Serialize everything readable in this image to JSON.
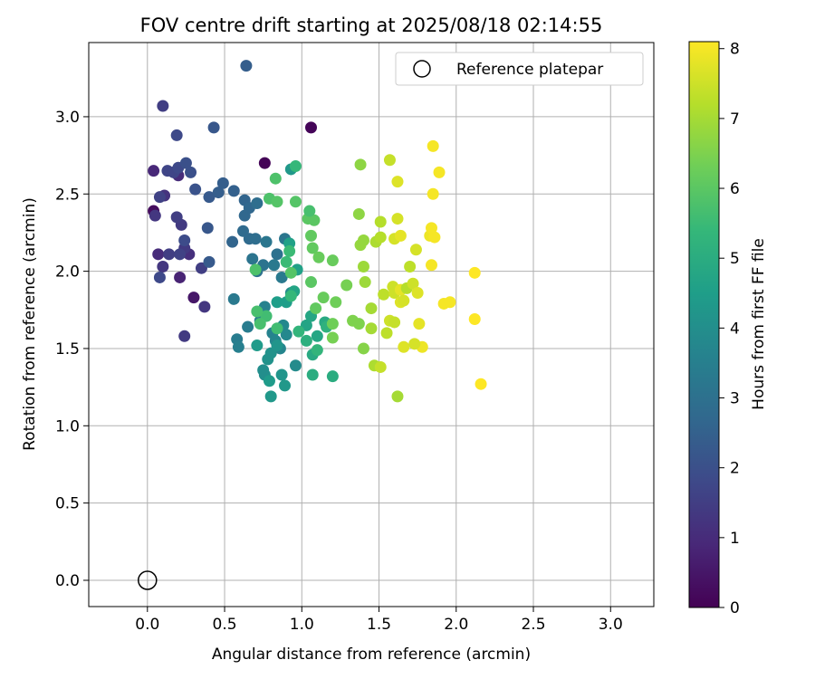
{
  "chart_data": {
    "type": "scatter",
    "title": "FOV centre drift starting at 2025/08/18 02:14:55",
    "xlabel": "Angular distance from reference (arcmin)",
    "ylabel": "Rotation from reference (arcmin)",
    "xlim": [
      -0.38,
      3.28
    ],
    "ylim": [
      -0.17,
      3.48
    ],
    "xticks": [
      0.0,
      0.5,
      1.0,
      1.5,
      2.0,
      2.5,
      3.0
    ],
    "yticks": [
      0.0,
      0.5,
      1.0,
      1.5,
      2.0,
      2.5,
      3.0
    ],
    "tick_format": "0.0",
    "grid": true,
    "legend": {
      "position": "top-right",
      "entries": [
        "Reference platepar"
      ]
    },
    "reference_point": {
      "x": 0.0,
      "y": 0.0,
      "label": "Reference platepar"
    },
    "colorbar": {
      "label": "Hours from first FF file",
      "range": [
        0,
        8.1
      ],
      "ticks": [
        0,
        1,
        2,
        3,
        4,
        5,
        6,
        7,
        8
      ],
      "colormap": "viridis"
    },
    "colormap_stops": [
      "#440154",
      "#482878",
      "#3e4989",
      "#31688e",
      "#26828e",
      "#1f9e89",
      "#35b779",
      "#6ece58",
      "#b5de2b",
      "#fde725"
    ],
    "series": [
      {
        "color_by": "hours",
        "points": [
          [
            0.76,
            2.7,
            0.05
          ],
          [
            1.06,
            2.93,
            0.1
          ],
          [
            0.04,
            2.39,
            0.25
          ],
          [
            0.3,
            1.83,
            0.5
          ],
          [
            0.21,
            1.96,
            0.8
          ],
          [
            0.04,
            2.65,
            0.9
          ],
          [
            0.07,
            2.11,
            1.0
          ],
          [
            0.2,
            2.62,
            1.0
          ],
          [
            0.27,
            2.11,
            1.1
          ],
          [
            0.11,
            2.49,
            1.2
          ],
          [
            0.05,
            2.36,
            1.3
          ],
          [
            0.1,
            2.03,
            1.3
          ],
          [
            0.24,
            2.15,
            1.4
          ],
          [
            0.22,
            2.3,
            1.4
          ],
          [
            0.35,
            2.02,
            1.5
          ],
          [
            0.37,
            1.77,
            1.3
          ],
          [
            0.24,
            1.58,
            1.4
          ],
          [
            0.1,
            3.07,
            1.5
          ],
          [
            0.19,
            2.35,
            1.5
          ],
          [
            0.14,
            2.11,
            1.5
          ],
          [
            0.21,
            2.11,
            1.6
          ],
          [
            0.08,
            2.48,
            1.6
          ],
          [
            0.13,
            2.65,
            1.7
          ],
          [
            0.17,
            2.64,
            1.7
          ],
          [
            0.2,
            2.67,
            1.8
          ],
          [
            0.08,
            1.96,
            1.8
          ],
          [
            0.19,
            2.88,
            1.8
          ],
          [
            0.24,
            2.2,
            1.9
          ],
          [
            0.25,
            2.7,
            2.0
          ],
          [
            0.31,
            2.53,
            2.1
          ],
          [
            0.28,
            2.64,
            2.0
          ],
          [
            0.43,
            2.93,
            2.2
          ],
          [
            0.39,
            2.28,
            2.2
          ],
          [
            0.4,
            2.48,
            2.3
          ],
          [
            0.4,
            2.06,
            2.3
          ],
          [
            0.46,
            2.51,
            2.4
          ],
          [
            0.49,
            2.57,
            2.4
          ],
          [
            0.56,
            2.52,
            2.5
          ],
          [
            0.64,
            3.33,
            2.4
          ],
          [
            0.55,
            2.19,
            2.6
          ],
          [
            0.63,
            2.46,
            2.6
          ],
          [
            0.63,
            2.36,
            2.7
          ],
          [
            0.66,
            2.41,
            2.7
          ],
          [
            0.62,
            2.26,
            2.8
          ],
          [
            0.66,
            2.21,
            2.8
          ],
          [
            0.7,
            2.21,
            2.9
          ],
          [
            0.71,
            2.44,
            2.9
          ],
          [
            0.71,
            2.0,
            3.0
          ],
          [
            0.68,
            2.08,
            3.1
          ],
          [
            0.75,
            2.04,
            3.1
          ],
          [
            0.84,
            2.11,
            3.0
          ],
          [
            0.77,
            2.19,
            3.2
          ],
          [
            0.89,
            2.21,
            3.2
          ],
          [
            0.82,
            2.04,
            3.3
          ],
          [
            0.87,
            1.96,
            3.3
          ],
          [
            0.56,
            1.82,
            3.3
          ],
          [
            0.65,
            1.64,
            3.4
          ],
          [
            0.58,
            1.56,
            3.4
          ],
          [
            0.59,
            1.51,
            3.5
          ],
          [
            0.73,
            1.68,
            3.5
          ],
          [
            0.76,
            1.77,
            3.6
          ],
          [
            0.81,
            1.6,
            3.6
          ],
          [
            0.83,
            1.55,
            3.7
          ],
          [
            0.86,
            1.5,
            3.7
          ],
          [
            0.88,
            1.65,
            3.8
          ],
          [
            0.9,
            1.59,
            3.8
          ],
          [
            0.93,
            1.86,
            3.9
          ],
          [
            0.96,
            1.39,
            3.9
          ],
          [
            0.75,
            1.36,
            4.0
          ],
          [
            0.76,
            1.33,
            4.0
          ],
          [
            0.78,
            1.43,
            4.1
          ],
          [
            0.8,
            1.47,
            4.1
          ],
          [
            0.84,
            1.52,
            4.2
          ],
          [
            0.87,
            1.33,
            4.2
          ],
          [
            0.89,
            1.26,
            4.3
          ],
          [
            0.8,
            1.19,
            4.3
          ],
          [
            0.79,
            1.29,
            4.4
          ],
          [
            0.71,
            1.52,
            4.4
          ],
          [
            0.84,
            1.8,
            4.5
          ],
          [
            0.9,
            1.8,
            4.5
          ],
          [
            0.93,
            2.66,
            4.3
          ],
          [
            0.92,
            2.18,
            4.6
          ],
          [
            0.97,
            2.01,
            4.6
          ],
          [
            0.95,
            1.87,
            4.7
          ],
          [
            1.03,
            1.65,
            4.7
          ],
          [
            1.06,
            1.71,
            4.8
          ],
          [
            1.1,
            1.58,
            4.8
          ],
          [
            1.15,
            1.67,
            4.9
          ],
          [
            1.07,
            1.46,
            4.9
          ],
          [
            1.07,
            1.33,
            5.0
          ],
          [
            1.2,
            1.32,
            5.0
          ],
          [
            1.03,
            1.55,
            5.1
          ],
          [
            1.16,
            1.64,
            5.2
          ],
          [
            1.1,
            1.49,
            5.3
          ],
          [
            0.98,
            1.61,
            5.3
          ],
          [
            0.96,
            2.68,
            5.4
          ],
          [
            0.93,
            1.84,
            5.4
          ],
          [
            0.9,
            2.06,
            5.5
          ],
          [
            0.92,
            2.13,
            5.5
          ],
          [
            0.84,
            1.63,
            5.6
          ],
          [
            0.77,
            1.71,
            5.6
          ],
          [
            0.71,
            1.74,
            5.7
          ],
          [
            0.73,
            1.66,
            5.7
          ],
          [
            0.7,
            2.01,
            5.8
          ],
          [
            0.79,
            2.47,
            5.8
          ],
          [
            0.84,
            2.45,
            5.9
          ],
          [
            0.96,
            2.45,
            5.9
          ],
          [
            1.04,
            2.34,
            6.0
          ],
          [
            1.08,
            2.33,
            6.0
          ],
          [
            1.06,
            2.23,
            6.1
          ],
          [
            1.07,
            2.15,
            6.1
          ],
          [
            1.11,
            2.09,
            6.2
          ],
          [
            1.2,
            2.07,
            6.2
          ],
          [
            1.05,
            2.39,
            5.7
          ],
          [
            0.93,
            1.99,
            5.9
          ],
          [
            1.06,
            1.93,
            6.0
          ],
          [
            1.09,
            1.76,
            6.1
          ],
          [
            1.14,
            1.83,
            6.2
          ],
          [
            1.22,
            1.8,
            6.3
          ],
          [
            1.2,
            1.66,
            6.3
          ],
          [
            1.2,
            1.57,
            6.4
          ],
          [
            1.29,
            1.91,
            6.4
          ],
          [
            1.33,
            1.68,
            6.5
          ],
          [
            1.37,
            1.66,
            6.5
          ],
          [
            1.4,
            1.5,
            6.6
          ],
          [
            0.83,
            2.6,
            5.8
          ],
          [
            1.38,
            2.69,
            6.7
          ],
          [
            1.37,
            2.37,
            6.7
          ],
          [
            1.38,
            2.17,
            6.8
          ],
          [
            1.4,
            2.2,
            6.8
          ],
          [
            1.4,
            2.03,
            6.9
          ],
          [
            1.41,
            1.93,
            6.9
          ],
          [
            1.45,
            1.76,
            7.0
          ],
          [
            1.45,
            1.63,
            7.0
          ],
          [
            1.47,
            1.39,
            7.1
          ],
          [
            1.48,
            2.19,
            7.1
          ],
          [
            1.51,
            2.22,
            7.2
          ],
          [
            1.51,
            2.32,
            7.2
          ],
          [
            1.53,
            1.85,
            7.3
          ],
          [
            1.55,
            1.6,
            7.3
          ],
          [
            1.51,
            1.38,
            7.4
          ],
          [
            1.57,
            2.72,
            7.4
          ],
          [
            1.59,
            1.9,
            7.5
          ],
          [
            1.6,
            1.86,
            7.5
          ],
          [
            1.6,
            2.21,
            7.6
          ],
          [
            1.62,
            2.34,
            7.6
          ],
          [
            1.62,
            2.58,
            7.7
          ],
          [
            1.64,
            1.8,
            7.7
          ],
          [
            1.64,
            1.88,
            7.8
          ],
          [
            1.64,
            2.23,
            7.8
          ],
          [
            1.62,
            1.19,
            7.0
          ],
          [
            1.68,
            1.89,
            7.2
          ],
          [
            1.7,
            2.03,
            7.3
          ],
          [
            1.72,
            1.92,
            7.5
          ],
          [
            1.74,
            2.14,
            7.6
          ],
          [
            1.75,
            1.86,
            7.7
          ],
          [
            1.76,
            1.66,
            7.8
          ],
          [
            1.78,
            1.51,
            7.9
          ],
          [
            1.83,
            2.23,
            7.9
          ],
          [
            1.84,
            2.28,
            8.0
          ],
          [
            1.85,
            2.5,
            8.0
          ],
          [
            1.85,
            2.81,
            8.0
          ],
          [
            1.84,
            2.04,
            8.0
          ],
          [
            1.86,
            2.22,
            8.0
          ],
          [
            1.89,
            2.64,
            8.0
          ],
          [
            1.92,
            1.79,
            8.0
          ],
          [
            1.96,
            1.8,
            8.0
          ],
          [
            2.12,
            1.69,
            8.1
          ],
          [
            2.12,
            1.99,
            8.1
          ],
          [
            2.16,
            1.27,
            8.1
          ],
          [
            1.66,
            1.51,
            7.7
          ],
          [
            1.73,
            1.53,
            7.6
          ],
          [
            1.57,
            1.68,
            7.5
          ],
          [
            1.6,
            1.67,
            7.4
          ],
          [
            1.66,
            1.81,
            7.6
          ]
        ]
      }
    ]
  }
}
